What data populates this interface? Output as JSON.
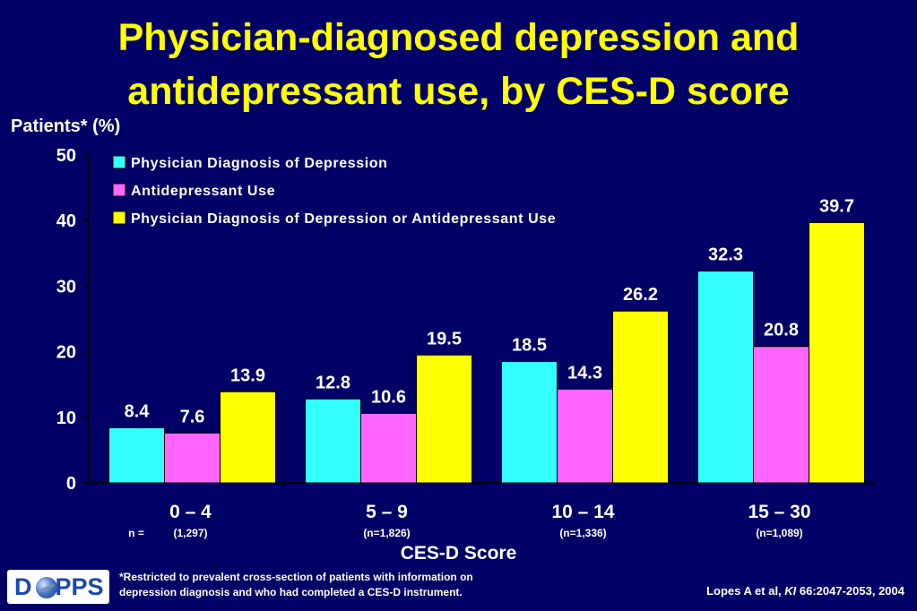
{
  "title_line1": "Physician-diagnosed depression and",
  "title_line2": "antidepressant use, by CES-D score",
  "ylabel": "Patients* (%)",
  "xlabel": "CES-D Score",
  "n_prefix": "n =",
  "footnote_line1": "*Restricted to prevalent cross-section of patients with information on",
  "footnote_line2": "depression diagnosis and who had completed a CES-D instrument.",
  "citation": {
    "prefix": "Lopes A et al, ",
    "journal": "KI",
    "suffix": " 66:2047-2053, 2004"
  },
  "logo": {
    "text_left": "D",
    "text_right": "PPS",
    "icon": "globe-icon"
  },
  "colors": {
    "background": "#000066",
    "title": "#ffff00",
    "series": [
      "#33ffff",
      "#ff66ff",
      "#ffff00"
    ]
  },
  "chart_data": {
    "type": "bar",
    "categories": [
      "0 – 4",
      "5 – 9",
      "10 – 14",
      "15 – 30"
    ],
    "n_counts": [
      "(1,297)",
      "(n=1,826)",
      "(n=1,336)",
      "(n=1,089)"
    ],
    "series": [
      {
        "name": "Physician Diagnosis of Depression",
        "values": [
          8.4,
          12.8,
          18.5,
          32.3
        ],
        "labels": [
          "8.4",
          "12.8",
          "18.5",
          "32.3"
        ]
      },
      {
        "name": "Antidepressant Use",
        "values": [
          7.6,
          10.6,
          14.3,
          20.8
        ],
        "labels": [
          "7.6",
          "10.6",
          "14.3",
          "20.8"
        ]
      },
      {
        "name": "Physician Diagnosis of Depression or Antidepressant Use",
        "values": [
          13.9,
          19.5,
          26.2,
          39.7
        ],
        "labels": [
          "13.9",
          "19.5",
          "26.2",
          "39.7"
        ]
      }
    ],
    "ylim": [
      0,
      50
    ],
    "yticks": [
      "0",
      "10",
      "20",
      "30",
      "40",
      "50"
    ],
    "legend_position": "top-left",
    "grid": false
  }
}
